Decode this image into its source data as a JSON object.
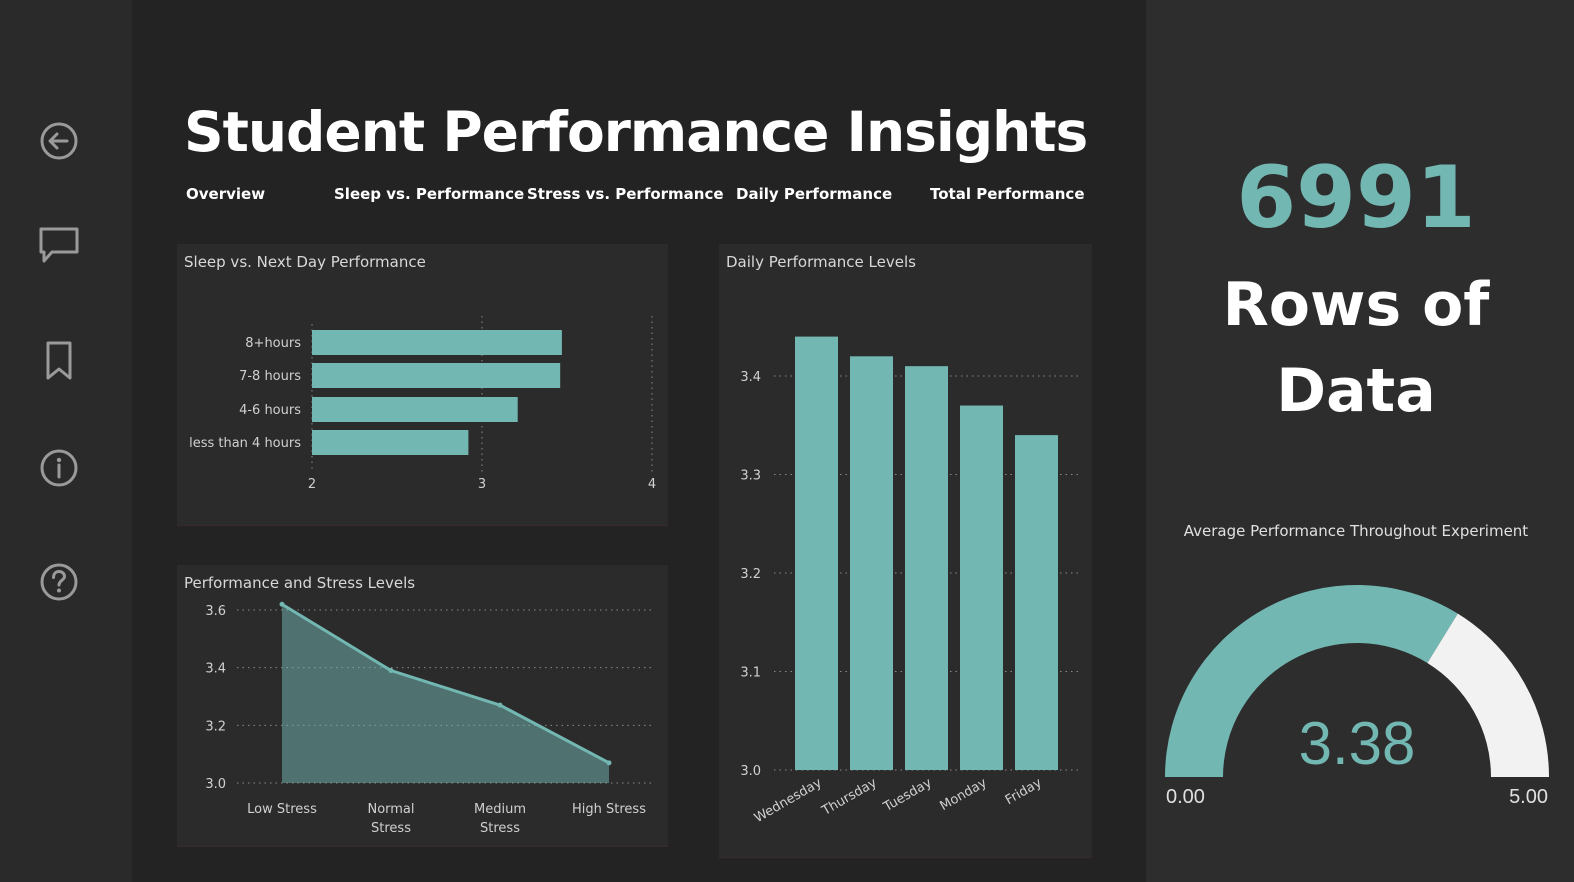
{
  "title": "Student Performance Insights",
  "tabs": [
    {
      "label": "Overview"
    },
    {
      "label": "Sleep vs. Performance"
    },
    {
      "label": "Stress vs. Performance"
    },
    {
      "label": "Daily Performance"
    },
    {
      "label": "Total Performance"
    }
  ],
  "sidebar": {
    "icons": [
      "back-arrow-icon",
      "comment-icon",
      "bookmark-icon",
      "info-icon",
      "help-icon"
    ]
  },
  "colors": {
    "accent": "#73b7b3",
    "gauge_remainder": "#f2f2f2"
  },
  "kpi": {
    "value": "6991",
    "label_line1": "Rows of",
    "label_line2": "Data"
  },
  "gauge": {
    "title": "Average Performance Throughout Experiment",
    "value": "3.38",
    "min": "0.00",
    "max": "5.00"
  },
  "chart_data": [
    {
      "type": "bar",
      "orientation": "horizontal",
      "title": "Sleep vs. Next Day Performance",
      "categories": [
        "8+hours",
        "7-8 hours",
        "4-6 hours",
        "less than 4 hours"
      ],
      "values": [
        3.47,
        3.46,
        3.21,
        2.92
      ],
      "xlim": [
        2,
        4
      ],
      "xticks": [
        "2",
        "3",
        "4"
      ]
    },
    {
      "type": "area",
      "title": "Performance and Stress Levels",
      "categories": [
        "Low Stress",
        "Normal Stress",
        "Medium Stress",
        "High Stress"
      ],
      "values": [
        3.62,
        3.39,
        3.27,
        3.07
      ],
      "ylim": [
        3.0,
        3.6
      ],
      "yticks": [
        "3.6",
        "3.4",
        "3.2",
        "3.0"
      ]
    },
    {
      "type": "bar",
      "title": "Daily Performance Levels",
      "categories": [
        "Wednesday",
        "Thursday",
        "Tuesday",
        "Monday",
        "Friday"
      ],
      "values": [
        3.44,
        3.42,
        3.41,
        3.37,
        3.34
      ],
      "ylim": [
        3.0,
        3.45
      ],
      "yticks": [
        "3.4",
        "3.3",
        "3.2",
        "3.1",
        "3.0"
      ]
    }
  ]
}
